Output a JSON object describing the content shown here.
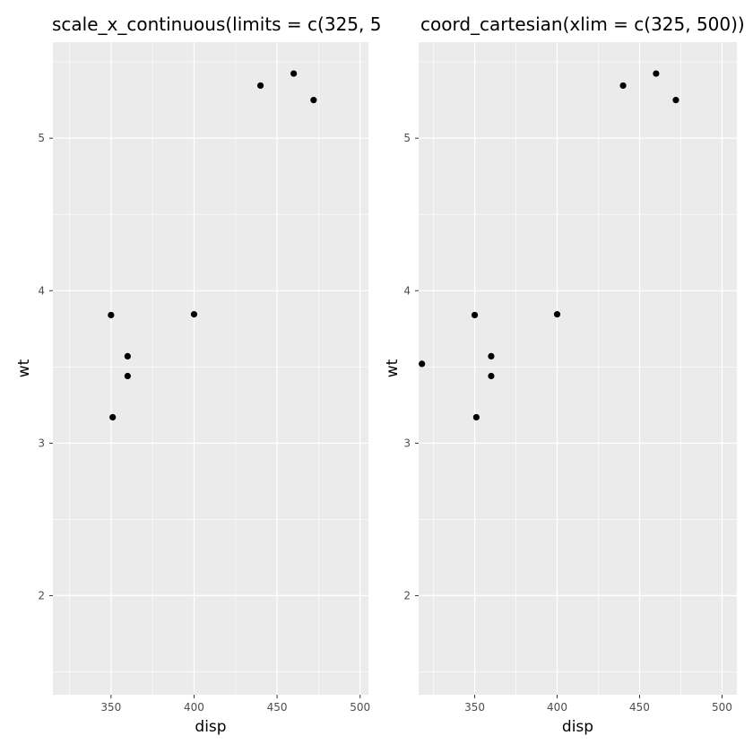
{
  "chart_data": [
    {
      "type": "scatter",
      "title": "scale_x_continuous(limits = c(325, 5",
      "xlabel": "disp",
      "ylabel": "wt",
      "xlim": [
        315,
        505
      ],
      "ylim": [
        1.35,
        5.63
      ],
      "x_ticks": [
        350,
        400,
        450,
        500
      ],
      "y_ticks": [
        2,
        3,
        4,
        5
      ],
      "x_tick_labels": [
        "350",
        "400",
        "450",
        "500"
      ],
      "y_tick_labels": [
        "2",
        "3",
        "4",
        "5"
      ],
      "grid": true,
      "background": "#ebebeb",
      "grid_color": "#ffffff",
      "point_color": "#000000",
      "points": [
        {
          "x": 350,
          "y": 3.84
        },
        {
          "x": 360,
          "y": 3.57
        },
        {
          "x": 360,
          "y": 3.44
        },
        {
          "x": 351,
          "y": 3.17
        },
        {
          "x": 400,
          "y": 3.845
        },
        {
          "x": 440,
          "y": 5.345
        },
        {
          "x": 460,
          "y": 5.424
        },
        {
          "x": 472,
          "y": 5.25
        }
      ]
    },
    {
      "type": "scatter",
      "title": "coord_cartesian(xlim = c(325, 500))",
      "xlabel": "disp",
      "ylabel": "wt",
      "xlim": [
        316,
        509
      ],
      "ylim": [
        1.35,
        5.63
      ],
      "x_ticks": [
        350,
        400,
        450,
        500
      ],
      "y_ticks": [
        2,
        3,
        4,
        5
      ],
      "x_tick_labels": [
        "350",
        "400",
        "450",
        "500"
      ],
      "y_tick_labels": [
        "2",
        "3",
        "4",
        "5"
      ],
      "grid": true,
      "background": "#ebebeb",
      "grid_color": "#ffffff",
      "point_color": "#000000",
      "points": [
        {
          "x": 318,
          "y": 3.52
        },
        {
          "x": 350,
          "y": 3.84
        },
        {
          "x": 360,
          "y": 3.57
        },
        {
          "x": 360,
          "y": 3.44
        },
        {
          "x": 351,
          "y": 3.17
        },
        {
          "x": 400,
          "y": 3.845
        },
        {
          "x": 440,
          "y": 5.345
        },
        {
          "x": 460,
          "y": 5.424
        },
        {
          "x": 472,
          "y": 5.25
        }
      ]
    }
  ]
}
